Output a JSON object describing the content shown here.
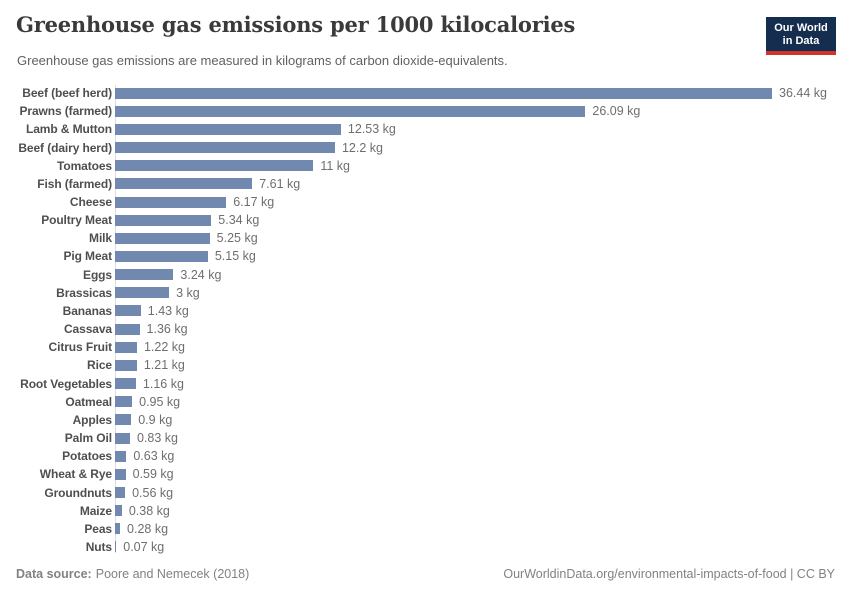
{
  "header": {
    "title": "Greenhouse gas emissions per 1000 kilocalories",
    "subtitle": "Greenhouse gas emissions are measured in kilograms of carbon dioxide-equivalents."
  },
  "logo": {
    "line1": "Our World",
    "line2": "in Data",
    "bg_color": "#152d4f",
    "accent_color": "#d0342c",
    "text_color": "#ffffff"
  },
  "chart_data": {
    "type": "bar",
    "orientation": "horizontal",
    "title": "Greenhouse gas emissions per 1000 kilocalories",
    "subtitle": "Greenhouse gas emissions are measured in kilograms of carbon dioxide-equivalents.",
    "unit": "kg",
    "categories": [
      "Beef (beef herd)",
      "Prawns (farmed)",
      "Lamb & Mutton",
      "Beef (dairy herd)",
      "Tomatoes",
      "Fish (farmed)",
      "Cheese",
      "Poultry Meat",
      "Milk",
      "Pig Meat",
      "Eggs",
      "Brassicas",
      "Bananas",
      "Cassava",
      "Citrus Fruit",
      "Rice",
      "Root Vegetables",
      "Oatmeal",
      "Apples",
      "Palm Oil",
      "Potatoes",
      "Wheat & Rye",
      "Groundnuts",
      "Maize",
      "Peas",
      "Nuts"
    ],
    "values": [
      36.44,
      26.09,
      12.53,
      12.2,
      11,
      7.61,
      6.17,
      5.34,
      5.25,
      5.15,
      3.24,
      3,
      1.43,
      1.36,
      1.22,
      1.21,
      1.16,
      0.95,
      0.9,
      0.83,
      0.63,
      0.59,
      0.56,
      0.38,
      0.28,
      0.07
    ],
    "value_labels": [
      "36.44 kg",
      "26.09 kg",
      "12.53 kg",
      "12.2 kg",
      "11 kg",
      "7.61 kg",
      "6.17 kg",
      "5.34 kg",
      "5.25 kg",
      "5.15 kg",
      "3.24 kg",
      "3 kg",
      "1.43 kg",
      "1.36 kg",
      "1.22 kg",
      "1.21 kg",
      "1.16 kg",
      "0.95 kg",
      "0.9 kg",
      "0.83 kg",
      "0.63 kg",
      "0.59 kg",
      "0.56 kg",
      "0.38 kg",
      "0.28 kg",
      "0.07 kg"
    ],
    "xlim": [
      0,
      36.44
    ],
    "bar_color": "#7189ae",
    "grid": false,
    "legend": "none"
  },
  "footer": {
    "datasource_label": "Data source:",
    "datasource_value": "Poore and Nemecek (2018)",
    "link_text": "OurWorldinData.org/environmental-impacts-of-food | CC BY"
  }
}
